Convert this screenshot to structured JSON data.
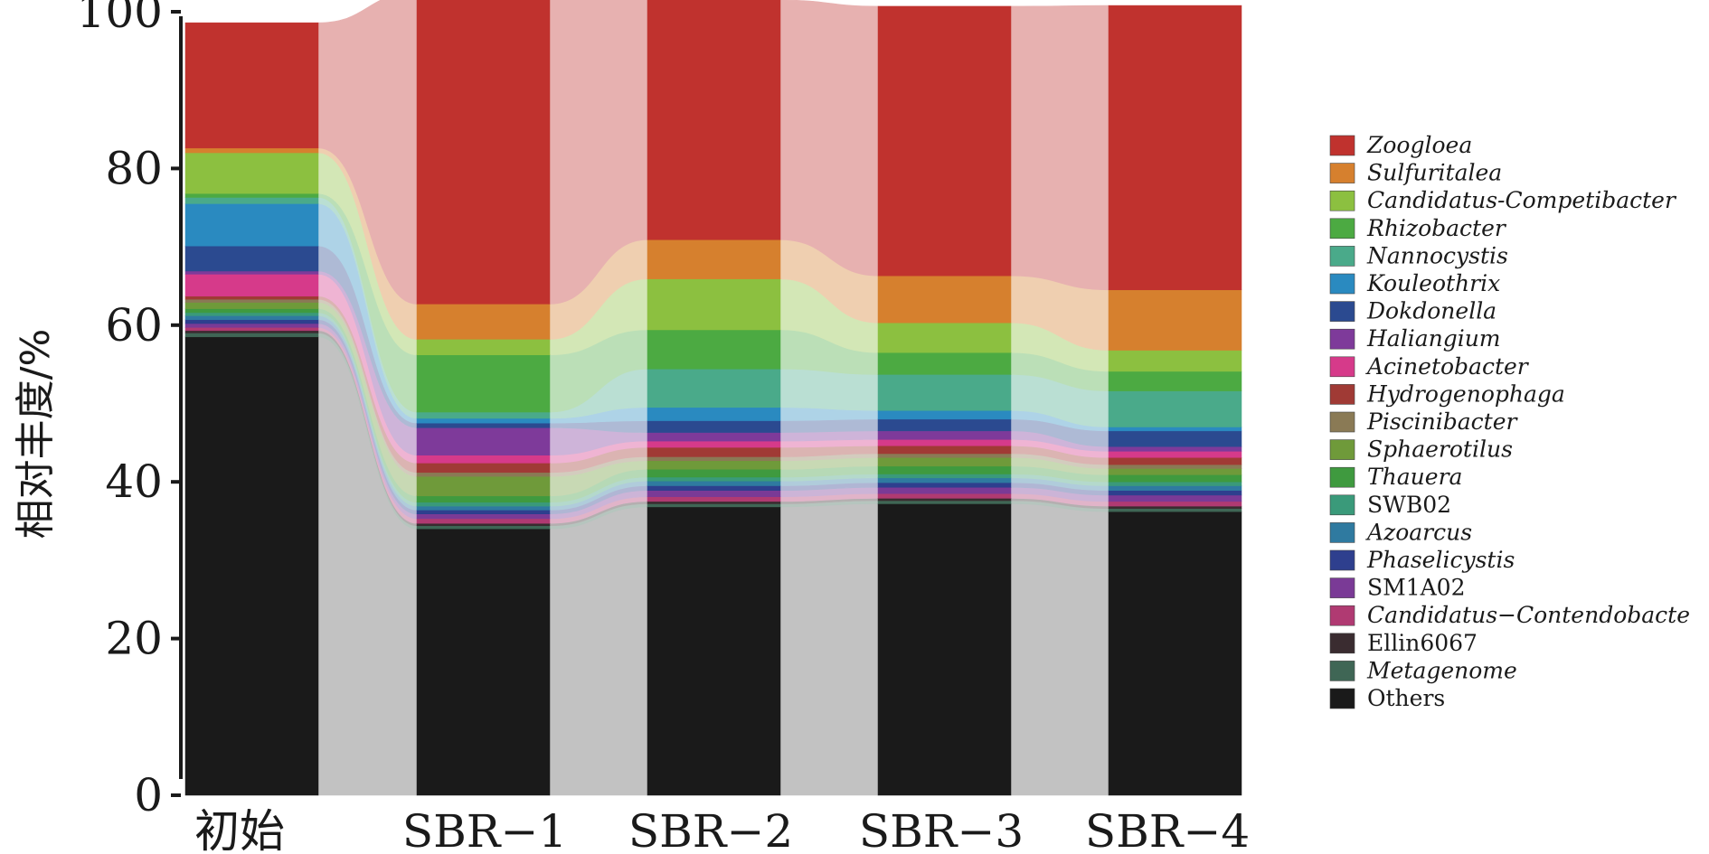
{
  "chart_data": {
    "type": "bar",
    "stacked": true,
    "connected_flows": true,
    "categories": [
      "初始",
      "SBR−1",
      "SBR−2",
      "SBR−3",
      "SBR−4"
    ],
    "ylabel": "相对丰度/%",
    "ylim": [
      0,
      100
    ],
    "yticks": [
      0,
      20,
      40,
      60,
      80,
      100
    ],
    "legend_position": "right",
    "series": [
      {
        "name": "Others",
        "color": "#1a1a1a",
        "italic": false,
        "values": [
          58.5,
          34.0,
          36.8,
          37.2,
          36.2
        ]
      },
      {
        "name": "Metagenome",
        "color": "#3f6655",
        "italic": true,
        "values": [
          0.5,
          0.4,
          0.4,
          0.4,
          0.4
        ]
      },
      {
        "name": "Ellin6067",
        "color": "#3a2c30",
        "italic": false,
        "values": [
          0.3,
          0.3,
          0.3,
          0.3,
          0.3
        ]
      },
      {
        "name": "Candidatus−Contendobacte",
        "color": "#b03a72",
        "italic": true,
        "values": [
          0.4,
          0.6,
          0.6,
          0.6,
          0.6
        ]
      },
      {
        "name": "SM1A02",
        "color": "#7a3a96",
        "italic": false,
        "values": [
          0.5,
          0.6,
          0.8,
          0.8,
          0.8
        ]
      },
      {
        "name": "Phaselicystis",
        "color": "#2e3f8e",
        "italic": true,
        "values": [
          0.5,
          0.5,
          0.6,
          0.6,
          0.6
        ]
      },
      {
        "name": "Azoarcus",
        "color": "#2f7aa0",
        "italic": true,
        "values": [
          0.5,
          0.5,
          0.6,
          0.6,
          0.6
        ]
      },
      {
        "name": "SWB02",
        "color": "#3a9a7a",
        "italic": false,
        "values": [
          0.4,
          0.5,
          0.5,
          0.5,
          0.5
        ]
      },
      {
        "name": "Thauera",
        "color": "#3f9a3f",
        "italic": true,
        "values": [
          0.5,
          0.8,
          1.0,
          1.0,
          0.9
        ]
      },
      {
        "name": "Sphaerotilus",
        "color": "#6f9a3a",
        "italic": true,
        "values": [
          0.8,
          2.5,
          1.1,
          1.1,
          0.8
        ]
      },
      {
        "name": "Piscinibacter",
        "color": "#8a7a55",
        "italic": true,
        "values": [
          0.4,
          0.5,
          0.5,
          0.5,
          0.5
        ]
      },
      {
        "name": "Hydrogenophaga",
        "color": "#a03a35",
        "italic": true,
        "values": [
          0.4,
          1.2,
          1.2,
          1.0,
          0.9
        ]
      },
      {
        "name": "Acinetobacter",
        "color": "#d63a8a",
        "italic": true,
        "values": [
          2.8,
          1.0,
          0.8,
          0.8,
          0.8
        ]
      },
      {
        "name": "Haliangium",
        "color": "#7e3a9a",
        "italic": true,
        "values": [
          0.4,
          3.5,
          1.1,
          1.1,
          0.6
        ]
      },
      {
        "name": "Dokdonella",
        "color": "#2b4a90",
        "italic": true,
        "values": [
          3.2,
          0.6,
          1.5,
          1.5,
          2.0
        ]
      },
      {
        "name": "Kouleothrix",
        "color": "#2a8ac0",
        "italic": true,
        "values": [
          5.4,
          0.6,
          1.7,
          1.1,
          0.5
        ]
      },
      {
        "name": "Nannocystis",
        "color": "#4aaa8a",
        "italic": true,
        "values": [
          0.8,
          0.8,
          4.9,
          4.6,
          4.6
        ]
      },
      {
        "name": "Rhizobacter",
        "color": "#4caa42",
        "italic": true,
        "values": [
          0.5,
          7.3,
          5.0,
          2.8,
          2.5
        ]
      },
      {
        "name": "Candidatus-Competibacter",
        "color": "#8cc040",
        "italic": true,
        "values": [
          5.2,
          2.0,
          6.5,
          3.8,
          2.7
        ]
      },
      {
        "name": "Sulfuritalea",
        "color": "#d6802e",
        "italic": true,
        "values": [
          0.6,
          4.5,
          5.0,
          6.0,
          7.7
        ]
      },
      {
        "name": "Zoogloea",
        "color": "#c0322e",
        "italic": true,
        "values": [
          16.0,
          39.8,
          30.6,
          34.4,
          36.3
        ]
      }
    ]
  }
}
